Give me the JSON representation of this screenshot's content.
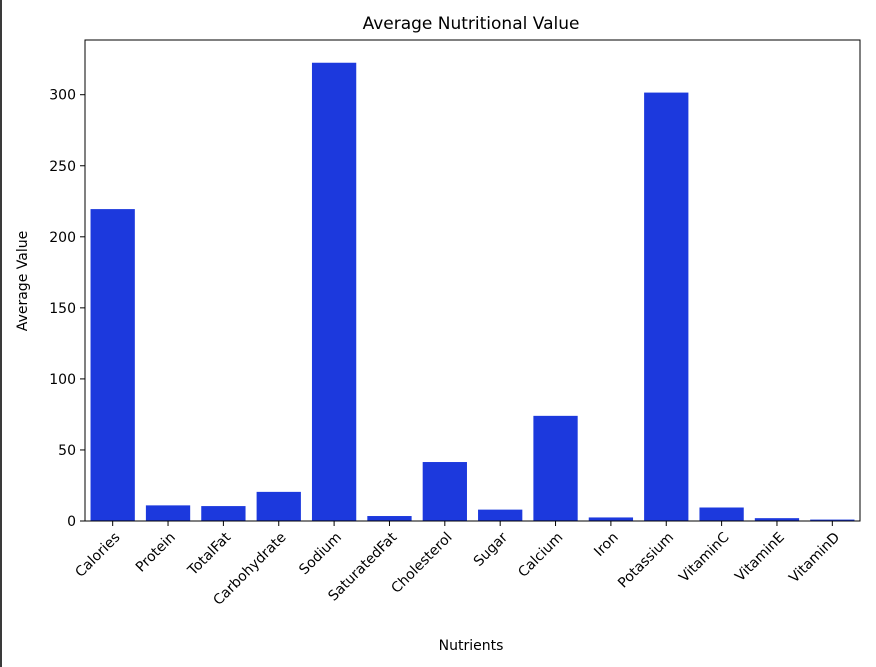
{
  "chart_data": {
    "type": "bar",
    "title": "Average Nutritional Value",
    "xlabel": "Nutrients",
    "ylabel": "Average Value",
    "categories": [
      "Calories",
      "Protein",
      "TotalFat",
      "Carbohydrate",
      "Sodium",
      "SaturatedFat",
      "Cholesterol",
      "Sugar",
      "Calcium",
      "Iron",
      "Potassium",
      "VitaminC",
      "VitaminE",
      "VitaminD"
    ],
    "values": [
      219.5,
      11.0,
      10.5,
      20.5,
      322.5,
      3.5,
      41.5,
      8.0,
      74.0,
      2.5,
      301.5,
      9.5,
      2.0,
      1.0
    ],
    "ylim": [
      0,
      338.5
    ],
    "yticks": [
      0,
      50,
      100,
      150,
      200,
      250,
      300
    ],
    "grid": false,
    "legend": "none",
    "bar_color": "#1c39dd"
  }
}
